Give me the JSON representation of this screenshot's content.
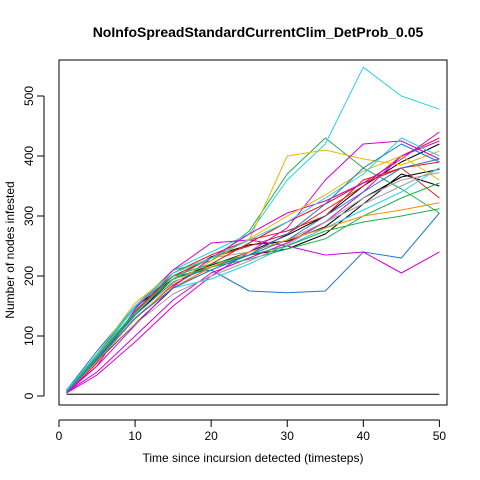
{
  "chart_data": {
    "type": "line",
    "title": "NoInfoSpreadStandardCurrentClim_DetProb_0.05",
    "xlabel": "Time since incursion detected (timesteps)",
    "ylabel": "Number of nodes infested",
    "xlim": [
      0,
      51
    ],
    "ylim": [
      -15,
      560
    ],
    "xticks": [
      0,
      10,
      20,
      30,
      40,
      50
    ],
    "yticks": [
      0,
      100,
      200,
      300,
      400,
      500
    ],
    "grid": false,
    "legend": "none",
    "x": [
      1,
      5,
      10,
      15,
      20,
      25,
      30,
      35,
      40,
      45,
      50
    ],
    "series": [
      {
        "color": "#000000",
        "values": [
          3,
          3,
          3,
          3,
          3,
          3,
          3,
          3,
          3,
          3,
          3
        ]
      },
      {
        "color": "#000000",
        "values": [
          8,
          70,
          148,
          195,
          218,
          240,
          268,
          300,
          350,
          390,
          420
        ]
      },
      {
        "color": "#000000",
        "values": [
          6,
          62,
          135,
          195,
          232,
          252,
          258,
          282,
          330,
          365,
          378
        ]
      },
      {
        "color": "#000000",
        "values": [
          10,
          58,
          120,
          180,
          215,
          235,
          245,
          270,
          320,
          370,
          350
        ]
      },
      {
        "color": "#E41A1C",
        "values": [
          5,
          55,
          140,
          205,
          235,
          260,
          275,
          300,
          360,
          380,
          330
        ]
      },
      {
        "color": "#E41A1C",
        "values": [
          7,
          60,
          142,
          200,
          230,
          250,
          270,
          310,
          350,
          400,
          430
        ]
      },
      {
        "color": "#1FB04B",
        "values": [
          8,
          65,
          150,
          210,
          225,
          275,
          370,
          430,
          380,
          345,
          305
        ]
      },
      {
        "color": "#1F77D0",
        "values": [
          10,
          75,
          150,
          200,
          210,
          175,
          172,
          175,
          240,
          230,
          305
        ]
      },
      {
        "color": "#22D3E8",
        "values": [
          9,
          65,
          148,
          210,
          240,
          270,
          360,
          420,
          548,
          500,
          478
        ]
      },
      {
        "color": "#D400D4",
        "values": [
          7,
          50,
          145,
          210,
          255,
          260,
          250,
          235,
          240,
          205,
          240
        ]
      },
      {
        "color": "#E6B800",
        "values": [
          8,
          70,
          155,
          205,
          230,
          260,
          400,
          410,
          395,
          385,
          408
        ]
      },
      {
        "color": "#A0A0A0",
        "values": [
          9,
          68,
          140,
          195,
          230,
          240,
          260,
          290,
          320,
          350,
          380
        ]
      },
      {
        "color": "#E41A1C",
        "values": [
          6,
          60,
          130,
          185,
          220,
          255,
          290,
          320,
          355,
          380,
          390
        ]
      },
      {
        "color": "#D400D4",
        "values": [
          5,
          50,
          118,
          182,
          230,
          270,
          305,
          325,
          355,
          395,
          440
        ]
      },
      {
        "color": "#D400D4",
        "values": [
          6,
          40,
          100,
          160,
          205,
          230,
          255,
          290,
          340,
          400,
          425
        ]
      },
      {
        "color": "#D400D4",
        "values": [
          5,
          35,
          90,
          150,
          200,
          240,
          280,
          360,
          420,
          425,
          395
        ]
      },
      {
        "color": "#22D3E8",
        "values": [
          7,
          58,
          130,
          180,
          195,
          220,
          250,
          280,
          310,
          340,
          380
        ]
      },
      {
        "color": "#1F77D0",
        "values": [
          8,
          62,
          135,
          190,
          215,
          235,
          260,
          300,
          340,
          380,
          395
        ]
      },
      {
        "color": "#1FB04B",
        "values": [
          9,
          66,
          140,
          195,
          215,
          228,
          245,
          262,
          300,
          330,
          355
        ]
      },
      {
        "color": "#E6B800",
        "values": [
          7,
          58,
          128,
          188,
          225,
          262,
          300,
          335,
          375,
          400,
          360
        ]
      },
      {
        "color": "#A0A0A0",
        "values": [
          8,
          60,
          120,
          170,
          200,
          225,
          252,
          290,
          330,
          360,
          372
        ]
      },
      {
        "color": "#FF8C00",
        "values": [
          7,
          58,
          130,
          180,
          215,
          240,
          260,
          280,
          300,
          310,
          322
        ]
      },
      {
        "color": "#1FB04B",
        "values": [
          8,
          64,
          138,
          200,
          220,
          235,
          250,
          275,
          290,
          300,
          312
        ]
      },
      {
        "color": "#22D3E8",
        "values": [
          9,
          70,
          150,
          205,
          230,
          260,
          290,
          330,
          370,
          430,
          400
        ]
      },
      {
        "color": "#1F77D0",
        "values": [
          7,
          60,
          130,
          180,
          210,
          235,
          270,
          320,
          380,
          420,
          390
        ]
      }
    ]
  }
}
